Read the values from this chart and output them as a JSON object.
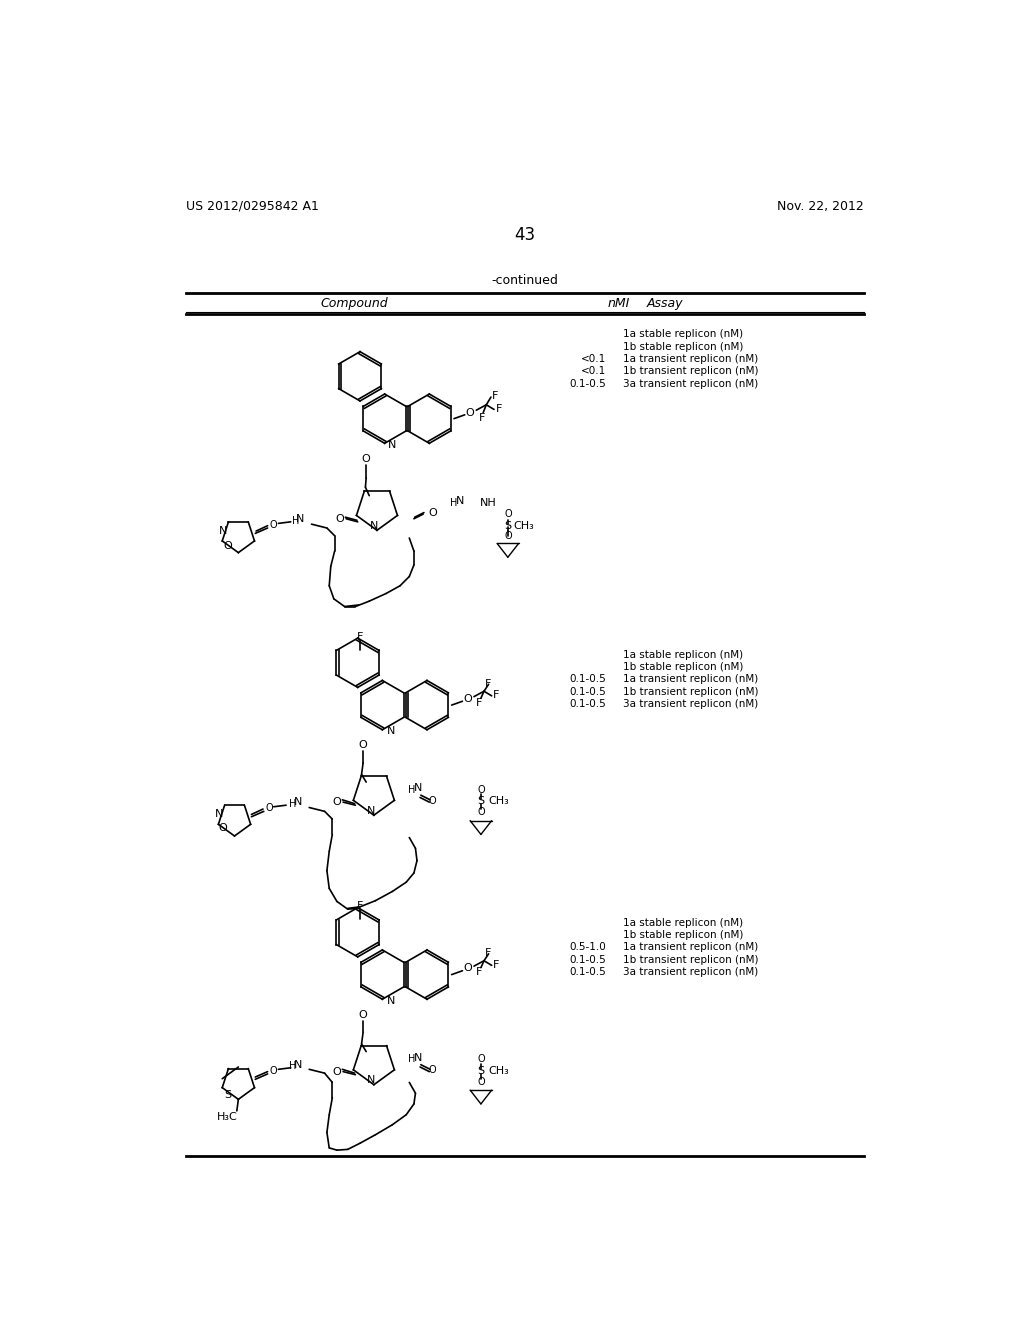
{
  "background_color": "#ffffff",
  "header_left": "US 2012/0295842 A1",
  "header_right": "Nov. 22, 2012",
  "page_number": "43",
  "table_title": "-continued",
  "col1_header": "Compound",
  "col2_header": "nMI",
  "col3_header": "Assay",
  "row1_assay": [
    [
      "",
      "1a stable replicon (nM)"
    ],
    [
      "",
      "1b stable replicon (nM)"
    ],
    [
      "<0.1",
      "1a transient replicon (nM)"
    ],
    [
      "<0.1",
      "1b transient replicon (nM)"
    ],
    [
      "0.1-0.5",
      "3a transient replicon (nM)"
    ]
  ],
  "row2_assay": [
    [
      "",
      "1a stable replicon (nM)"
    ],
    [
      "",
      "1b stable replicon (nM)"
    ],
    [
      "0.1-0.5",
      "1a transient replicon (nM)"
    ],
    [
      "0.1-0.5",
      "1b transient replicon (nM)"
    ],
    [
      "0.1-0.5",
      "3a transient replicon (nM)"
    ]
  ],
  "row3_assay": [
    [
      "",
      "1a stable replicon (nM)"
    ],
    [
      "",
      "1b stable replicon (nM)"
    ],
    [
      "0.5-1.0",
      "1a transient replicon (nM)"
    ],
    [
      "0.1-0.5",
      "1b transient replicon (nM)"
    ],
    [
      "0.1-0.5",
      "3a transient replicon (nM)"
    ]
  ],
  "text_color": "#000000",
  "line_color": "#000000",
  "font_size_body": 7.5,
  "font_size_page_header": 9,
  "font_size_page_num": 12,
  "font_size_continued": 9,
  "font_size_col_header": 9
}
